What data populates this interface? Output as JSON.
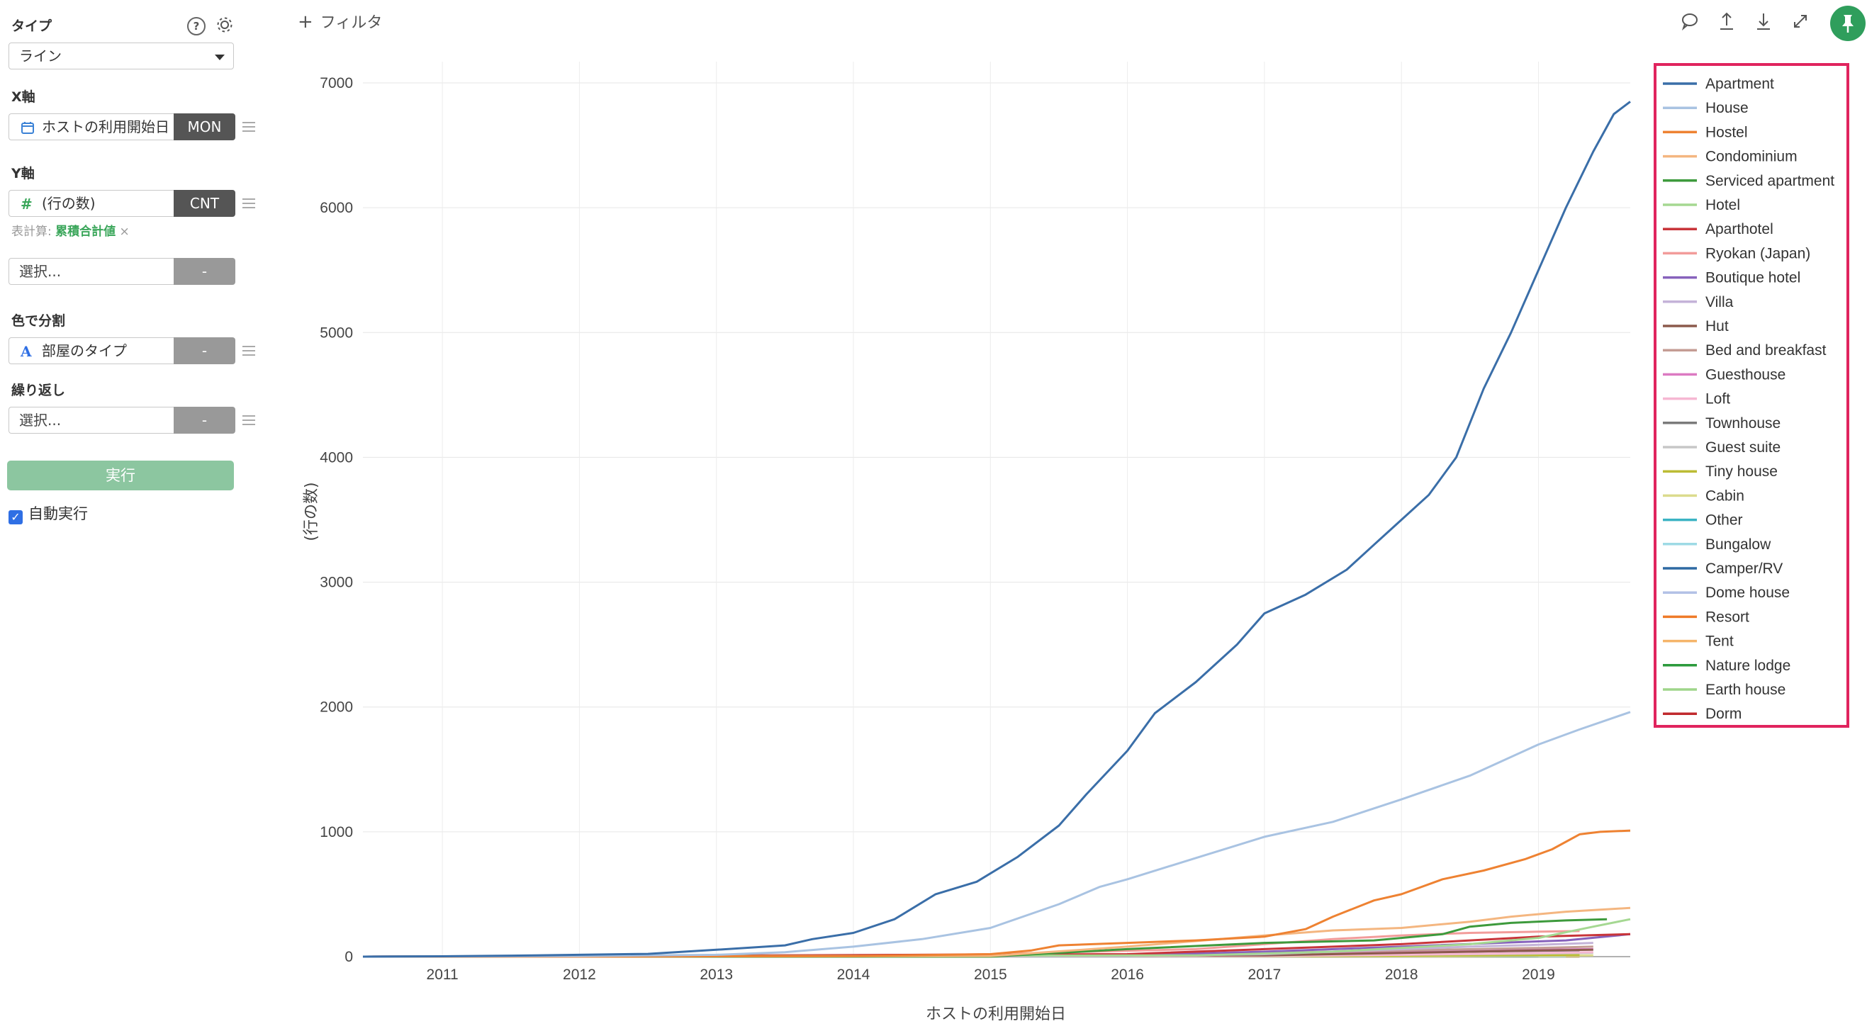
{
  "sidebar": {
    "type_label": "タイプ",
    "type_value": "ライン",
    "x_axis_label": "X軸",
    "x_field": "ホストの利用開始日",
    "x_agg": "MON",
    "y_axis_label": "Y軸",
    "y_field": "(行の数)",
    "y_agg": "CNT",
    "calc_prefix": "表計算:",
    "calc_value": "累積合計値",
    "calc_remove": "×",
    "extra_select": "選択...",
    "extra_agg": "-",
    "color_label": "色で分割",
    "color_field": "部屋のタイプ",
    "color_agg": "-",
    "repeat_label": "繰り返し",
    "repeat_select": "選択...",
    "repeat_agg": "-",
    "run_button": "実行",
    "auto_run": "自動実行",
    "auto_run_checked": true
  },
  "toolbar": {
    "filter_label": "フィルタ",
    "icons": [
      "comment-icon",
      "share-icon",
      "download-icon",
      "expand-icon",
      "pin-icon"
    ]
  },
  "chart_data": {
    "type": "line",
    "xlabel": "ホストの利用開始日",
    "ylabel": "(行の数)",
    "ylim": [
      0,
      7000
    ],
    "yticks": [
      0,
      1000,
      2000,
      3000,
      4000,
      5000,
      6000,
      7000
    ],
    "xticks": [
      "2011",
      "2012",
      "2013",
      "2014",
      "2015",
      "2016",
      "2017",
      "2018",
      "2019"
    ],
    "xrange": [
      2010.42,
      2019.67
    ],
    "grid": true,
    "legend_position": "right",
    "series": [
      {
        "name": "Apartment",
        "color": "#3a6ea8",
        "points": [
          [
            2010.42,
            0
          ],
          [
            2011.0,
            3
          ],
          [
            2011.5,
            8
          ],
          [
            2012.0,
            15
          ],
          [
            2012.5,
            22
          ],
          [
            2013.0,
            55
          ],
          [
            2013.5,
            90
          ],
          [
            2013.7,
            140
          ],
          [
            2014.0,
            190
          ],
          [
            2014.3,
            300
          ],
          [
            2014.6,
            500
          ],
          [
            2014.9,
            600
          ],
          [
            2015.2,
            800
          ],
          [
            2015.5,
            1050
          ],
          [
            2015.7,
            1300
          ],
          [
            2016.0,
            1650
          ],
          [
            2016.2,
            1950
          ],
          [
            2016.5,
            2200
          ],
          [
            2016.8,
            2500
          ],
          [
            2017.0,
            2750
          ],
          [
            2017.3,
            2900
          ],
          [
            2017.6,
            3100
          ],
          [
            2017.8,
            3300
          ],
          [
            2018.0,
            3500
          ],
          [
            2018.2,
            3700
          ],
          [
            2018.4,
            4000
          ],
          [
            2018.6,
            4550
          ],
          [
            2018.8,
            5000
          ],
          [
            2019.0,
            5500
          ],
          [
            2019.2,
            6000
          ],
          [
            2019.4,
            6450
          ],
          [
            2019.55,
            6750
          ],
          [
            2019.67,
            6850
          ]
        ]
      },
      {
        "name": "House",
        "color": "#a9c3e2",
        "points": [
          [
            2010.42,
            0
          ],
          [
            2012.0,
            5
          ],
          [
            2013.0,
            15
          ],
          [
            2013.5,
            35
          ],
          [
            2014.0,
            80
          ],
          [
            2014.5,
            140
          ],
          [
            2015.0,
            230
          ],
          [
            2015.5,
            420
          ],
          [
            2015.8,
            560
          ],
          [
            2016.0,
            620
          ],
          [
            2016.5,
            790
          ],
          [
            2017.0,
            960
          ],
          [
            2017.5,
            1080
          ],
          [
            2018.0,
            1260
          ],
          [
            2018.5,
            1450
          ],
          [
            2019.0,
            1700
          ],
          [
            2019.3,
            1820
          ],
          [
            2019.67,
            1960
          ]
        ]
      },
      {
        "name": "Hostel",
        "color": "#ee8232",
        "points": [
          [
            2010.42,
            0
          ],
          [
            2012.0,
            0
          ],
          [
            2014.0,
            5
          ],
          [
            2015.0,
            20
          ],
          [
            2015.3,
            50
          ],
          [
            2015.5,
            90
          ],
          [
            2016.0,
            110
          ],
          [
            2016.5,
            130
          ],
          [
            2017.0,
            160
          ],
          [
            2017.3,
            220
          ],
          [
            2017.5,
            320
          ],
          [
            2017.8,
            450
          ],
          [
            2018.0,
            500
          ],
          [
            2018.3,
            620
          ],
          [
            2018.6,
            690
          ],
          [
            2018.9,
            780
          ],
          [
            2019.1,
            860
          ],
          [
            2019.3,
            980
          ],
          [
            2019.45,
            1000
          ],
          [
            2019.67,
            1010
          ]
        ]
      },
      {
        "name": "Condominium",
        "color": "#f4b680",
        "points": [
          [
            2010.42,
            0
          ],
          [
            2015.0,
            5
          ],
          [
            2016.0,
            80
          ],
          [
            2017.0,
            170
          ],
          [
            2017.5,
            210
          ],
          [
            2018.0,
            230
          ],
          [
            2018.5,
            280
          ],
          [
            2018.8,
            320
          ],
          [
            2019.2,
            360
          ],
          [
            2019.67,
            390
          ]
        ]
      },
      {
        "name": "Serviced apartment",
        "color": "#3d9a3c",
        "points": [
          [
            2010.42,
            0
          ],
          [
            2015.0,
            0
          ],
          [
            2016.0,
            60
          ],
          [
            2017.0,
            110
          ],
          [
            2017.8,
            130
          ],
          [
            2018.3,
            180
          ],
          [
            2018.5,
            240
          ],
          [
            2018.8,
            270
          ],
          [
            2019.2,
            290
          ],
          [
            2019.5,
            300
          ]
        ]
      },
      {
        "name": "Hotel",
        "color": "#a5d892",
        "points": [
          [
            2010.42,
            0
          ],
          [
            2016.5,
            10
          ],
          [
            2017.5,
            40
          ],
          [
            2018.5,
            100
          ],
          [
            2019.0,
            150
          ],
          [
            2019.4,
            240
          ],
          [
            2019.67,
            300
          ]
        ]
      },
      {
        "name": "Aparthotel",
        "color": "#c8353a",
        "points": [
          [
            2010.42,
            0
          ],
          [
            2016.0,
            20
          ],
          [
            2017.0,
            60
          ],
          [
            2018.0,
            100
          ],
          [
            2018.5,
            130
          ],
          [
            2019.0,
            160
          ],
          [
            2019.67,
            180
          ]
        ]
      },
      {
        "name": "Ryokan (Japan)",
        "color": "#f29c9a",
        "points": [
          [
            2010.42,
            0
          ],
          [
            2013.5,
            5
          ],
          [
            2015.0,
            20
          ],
          [
            2016.5,
            60
          ],
          [
            2017.5,
            140
          ],
          [
            2018.0,
            170
          ],
          [
            2018.5,
            190
          ],
          [
            2019.0,
            200
          ],
          [
            2019.3,
            205
          ]
        ]
      },
      {
        "name": "Boutique hotel",
        "color": "#8762bc",
        "points": [
          [
            2010.42,
            0
          ],
          [
            2016.0,
            10
          ],
          [
            2017.0,
            40
          ],
          [
            2018.0,
            80
          ],
          [
            2018.7,
            110
          ],
          [
            2019.2,
            130
          ],
          [
            2019.67,
            180
          ]
        ]
      },
      {
        "name": "Villa",
        "color": "#c4b3d8",
        "points": [
          [
            2010.42,
            0
          ],
          [
            2016.0,
            5
          ],
          [
            2017.0,
            20
          ],
          [
            2018.0,
            60
          ],
          [
            2018.5,
            80
          ],
          [
            2019.0,
            95
          ],
          [
            2019.4,
            110
          ]
        ]
      },
      {
        "name": "Hut",
        "color": "#8c5a4c",
        "points": [
          [
            2010.42,
            0
          ],
          [
            2017.0,
            10
          ],
          [
            2018.0,
            30
          ],
          [
            2019.0,
            50
          ],
          [
            2019.4,
            55
          ]
        ]
      },
      {
        "name": "Bed and breakfast",
        "color": "#c49c94",
        "points": [
          [
            2010.42,
            0
          ],
          [
            2016.0,
            10
          ],
          [
            2017.0,
            30
          ],
          [
            2018.0,
            50
          ],
          [
            2019.0,
            70
          ],
          [
            2019.4,
            80
          ]
        ]
      },
      {
        "name": "Guesthouse",
        "color": "#dc7ac2",
        "points": [
          [
            2010.42,
            0
          ],
          [
            2016.0,
            5
          ],
          [
            2017.0,
            15
          ],
          [
            2018.0,
            35
          ],
          [
            2019.0,
            55
          ],
          [
            2019.4,
            60
          ]
        ]
      },
      {
        "name": "Loft",
        "color": "#f6b7d2",
        "points": [
          [
            2010.42,
            0
          ],
          [
            2017.0,
            5
          ],
          [
            2018.0,
            15
          ],
          [
            2019.0,
            30
          ],
          [
            2019.4,
            35
          ]
        ]
      },
      {
        "name": "Townhouse",
        "color": "#7b7b7b",
        "points": [
          [
            2010.42,
            0
          ],
          [
            2016.5,
            10
          ],
          [
            2017.5,
            25
          ],
          [
            2018.5,
            40
          ],
          [
            2019.3,
            50
          ]
        ]
      },
      {
        "name": "Guest suite",
        "color": "#c7c7c7",
        "points": [
          [
            2010.42,
            0
          ],
          [
            2017.0,
            5
          ],
          [
            2018.0,
            15
          ],
          [
            2019.0,
            25
          ],
          [
            2019.4,
            30
          ]
        ]
      },
      {
        "name": "Tiny house",
        "color": "#bcbc35",
        "points": [
          [
            2010.42,
            0
          ],
          [
            2017.5,
            5
          ],
          [
            2018.5,
            10
          ],
          [
            2019.3,
            12
          ]
        ]
      },
      {
        "name": "Cabin",
        "color": "#dbdb8d",
        "points": [
          [
            2010.42,
            0
          ],
          [
            2018.0,
            3
          ],
          [
            2019.0,
            8
          ],
          [
            2019.4,
            10
          ]
        ]
      },
      {
        "name": "Other",
        "color": "#3bb3c3",
        "points": [
          [
            2010.42,
            0
          ],
          [
            2016.0,
            3
          ],
          [
            2017.0,
            6
          ],
          [
            2018.0,
            10
          ],
          [
            2018.8,
            12
          ]
        ]
      },
      {
        "name": "Bungalow",
        "color": "#9edae5",
        "points": [
          [
            2010.42,
            0
          ],
          [
            2018.0,
            2
          ],
          [
            2019.0,
            5
          ],
          [
            2019.3,
            6
          ]
        ]
      },
      {
        "name": "Camper/RV",
        "color": "#2f6aa3",
        "points": [
          [
            2010.42,
            0
          ],
          [
            2018.0,
            2
          ],
          [
            2019.0,
            4
          ]
        ]
      },
      {
        "name": "Dome house",
        "color": "#b3c1e6",
        "points": [
          [
            2010.42,
            0
          ],
          [
            2018.5,
            2
          ],
          [
            2019.2,
            3
          ]
        ]
      },
      {
        "name": "Resort",
        "color": "#ef7a28",
        "points": [
          [
            2010.42,
            0
          ],
          [
            2018.5,
            2
          ],
          [
            2019.3,
            4
          ]
        ]
      },
      {
        "name": "Tent",
        "color": "#f5b46a",
        "points": [
          [
            2010.42,
            0
          ],
          [
            2018.8,
            1
          ],
          [
            2019.3,
            2
          ]
        ]
      },
      {
        "name": "Nature lodge",
        "color": "#2c9a3c",
        "points": [
          [
            2010.42,
            0
          ],
          [
            2019.0,
            1
          ],
          [
            2019.3,
            2
          ]
        ]
      },
      {
        "name": "Earth house",
        "color": "#9fd68a",
        "points": [
          [
            2010.42,
            0
          ],
          [
            2019.0,
            1
          ],
          [
            2019.3,
            1
          ]
        ]
      },
      {
        "name": "Dorm",
        "color": "#c02a2e",
        "points": [
          [
            2010.42,
            0
          ],
          [
            2019.0,
            1
          ],
          [
            2019.3,
            1
          ]
        ]
      }
    ]
  }
}
